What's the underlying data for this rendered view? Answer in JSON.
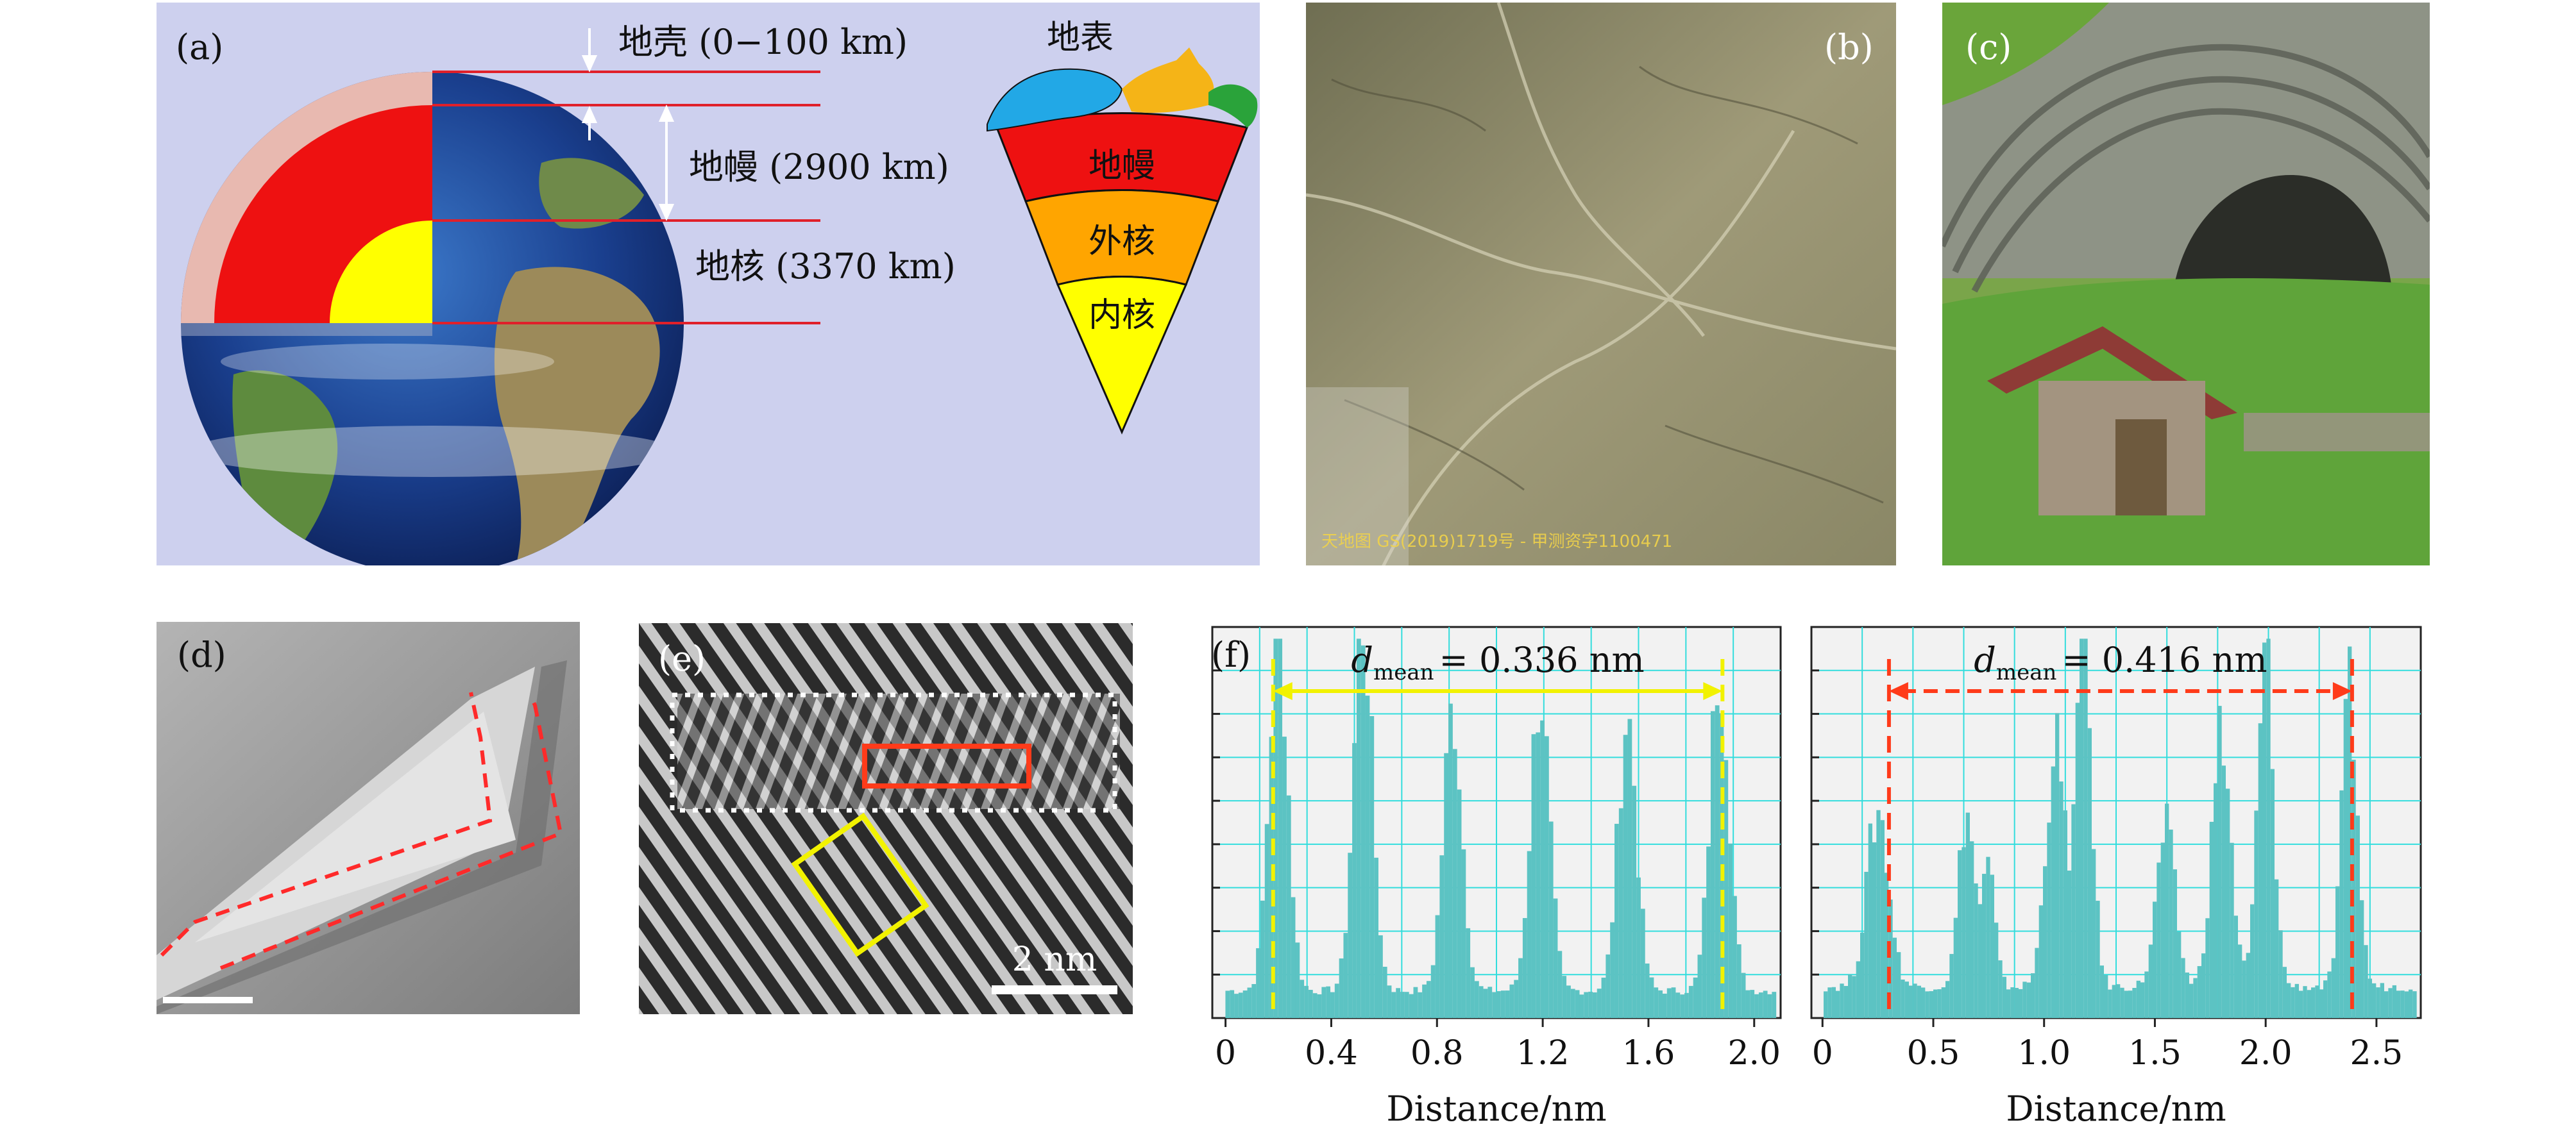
{
  "panel_a": {
    "label": "(a)",
    "crust_label": "地壳 (0−100 km)",
    "mantle_label": "地幔 (2900 km)",
    "core_label": "地核 (3370 km)",
    "surface_label": "地表",
    "wedge_mantle": "地幔",
    "wedge_outer_core": "外核",
    "wedge_inner_core": "内核",
    "colors": {
      "bg": "#cdd0ee",
      "crust": "#e8b9b0",
      "mantle": "#ee1111",
      "core": "#ffff00",
      "outer_core": "#ffa500",
      "line": "#e0202a"
    }
  },
  "panel_b": {
    "label": "(b)",
    "watermark": "天地图 GS(2019)1719号 - 甲测资字1100471"
  },
  "panel_c": {
    "label": "(c)"
  },
  "panel_d": {
    "label": "(d)"
  },
  "panel_e": {
    "label": "(e)",
    "scale_label": "2 nm"
  },
  "panel_f": {
    "label": "(f)"
  },
  "chart_data": [
    {
      "type": "bar",
      "title": "",
      "xlabel": "Distance/nm",
      "ylabel": "",
      "xlim": [
        -0.05,
        2.1
      ],
      "ylim": [
        0,
        1
      ],
      "xticks": [
        0,
        0.4,
        0.8,
        1.2,
        1.6,
        2.0
      ],
      "xtick_labels": [
        "0",
        "0.4",
        "0.8",
        "1.2",
        "1.6",
        "2.0"
      ],
      "annotation_d": "d",
      "annotation_sub": "mean",
      "annotation_value": "= 0.336 nm",
      "marker_x": [
        0.18,
        1.88
      ],
      "peaks": [
        {
          "x": 0.2,
          "h": 0.93,
          "w": 0.05
        },
        {
          "x": 0.52,
          "h": 0.95,
          "w": 0.05
        },
        {
          "x": 0.86,
          "h": 0.72,
          "w": 0.05
        },
        {
          "x": 1.19,
          "h": 0.77,
          "w": 0.05
        },
        {
          "x": 1.52,
          "h": 0.7,
          "w": 0.05
        },
        {
          "x": 1.87,
          "h": 0.85,
          "w": 0.05
        }
      ],
      "baseline": 0.07,
      "bins": 130,
      "colors": {
        "bar": "#5cc3c3",
        "grid": "#33dddd",
        "marker": "#f2f200",
        "bg": "#f2f2f2"
      }
    },
    {
      "type": "bar",
      "title": "",
      "xlabel": "Distance/nm",
      "ylabel": "",
      "xlim": [
        -0.05,
        2.7
      ],
      "ylim": [
        0,
        1
      ],
      "xticks": [
        0,
        0.5,
        1.0,
        1.5,
        2.0,
        2.5
      ],
      "xtick_labels": [
        "0",
        "0.5",
        "1.0",
        "1.5",
        "2.0",
        "2.5"
      ],
      "annotation_d": "d",
      "annotation_sub": "mean",
      "annotation_value": "= 0.416 nm",
      "marker_x": [
        0.3,
        2.39
      ],
      "peaks": [
        {
          "x": 0.25,
          "h": 0.45,
          "w": 0.07
        },
        {
          "x": 0.65,
          "h": 0.45,
          "w": 0.05
        },
        {
          "x": 0.75,
          "h": 0.3,
          "w": 0.04
        },
        {
          "x": 1.05,
          "h": 0.62,
          "w": 0.06
        },
        {
          "x": 1.18,
          "h": 0.88,
          "w": 0.05
        },
        {
          "x": 1.55,
          "h": 0.4,
          "w": 0.06
        },
        {
          "x": 1.8,
          "h": 0.65,
          "w": 0.06
        },
        {
          "x": 2.0,
          "h": 0.85,
          "w": 0.05
        },
        {
          "x": 2.38,
          "h": 0.75,
          "w": 0.05
        }
      ],
      "baseline": 0.08,
      "bins": 150,
      "colors": {
        "bar": "#5cc3c3",
        "grid": "#33dddd",
        "marker": "#ff3b1a",
        "bg": "#f2f2f2"
      }
    }
  ]
}
